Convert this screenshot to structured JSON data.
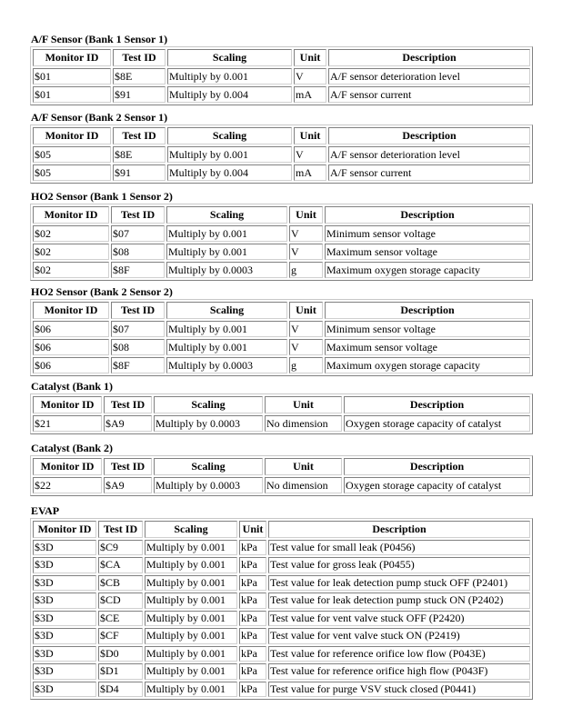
{
  "sections": [
    {
      "title": "A/F Sensor (Bank 1 Sensor 1)",
      "headers": [
        "Monitor ID",
        "Test ID",
        "Scaling",
        "Unit",
        "Description"
      ],
      "rows": [
        [
          "$01",
          "$8E",
          "Multiply by 0.001",
          "V",
          "A/F sensor deterioration level"
        ],
        [
          "$01",
          "$91",
          "Multiply by 0.004",
          "mA",
          "A/F sensor current"
        ]
      ]
    },
    {
      "title": "A/F Sensor (Bank 2 Sensor 1)",
      "headers": [
        "Monitor ID",
        "Test ID",
        "Scaling",
        "Unit",
        "Description"
      ],
      "rows": [
        [
          "$05",
          "$8E",
          "Multiply by 0.001",
          "V",
          "A/F sensor deterioration level"
        ],
        [
          "$05",
          "$91",
          "Multiply by 0.004",
          "mA",
          "A/F sensor current"
        ]
      ]
    },
    {
      "title": "HO2 Sensor (Bank 1 Sensor 2)",
      "headers": [
        "Monitor ID",
        "Test ID",
        "Scaling",
        "Unit",
        "Description"
      ],
      "rows": [
        [
          "$02",
          "$07",
          "Multiply by 0.001",
          "V",
          "Minimum sensor voltage"
        ],
        [
          "$02",
          "$08",
          "Multiply by 0.001",
          "V",
          "Maximum sensor voltage"
        ],
        [
          "$02",
          "$8F",
          "Multiply by 0.0003",
          "g",
          "Maximum oxygen storage capacity"
        ]
      ]
    },
    {
      "title": "HO2 Sensor (Bank 2 Sensor 2)",
      "headers": [
        "Monitor ID",
        "Test ID",
        "Scaling",
        "Unit",
        "Description"
      ],
      "rows": [
        [
          "$06",
          "$07",
          "Multiply by 0.001",
          "V",
          "Minimum sensor voltage"
        ],
        [
          "$06",
          "$08",
          "Multiply by 0.001",
          "V",
          "Maximum sensor voltage"
        ],
        [
          "$06",
          "$8F",
          "Multiply by 0.0003",
          "g",
          "Maximum oxygen storage capacity"
        ]
      ]
    },
    {
      "title": "Catalyst (Bank 1)",
      "headers": [
        "Monitor ID",
        "Test ID",
        "Scaling",
        "Unit",
        "Description"
      ],
      "rows": [
        [
          "$21",
          "$A9",
          "Multiply by 0.0003",
          "No dimension",
          "Oxygen storage capacity of catalyst"
        ]
      ]
    },
    {
      "title": "Catalyst (Bank 2)",
      "headers": [
        "Monitor ID",
        "Test ID",
        "Scaling",
        "Unit",
        "Description"
      ],
      "rows": [
        [
          "$22",
          "$A9",
          "Multiply by 0.0003",
          "No dimension",
          "Oxygen storage capacity of catalyst"
        ]
      ]
    },
    {
      "title": "EVAP",
      "headers": [
        "Monitor ID",
        "Test ID",
        "Scaling",
        "Unit",
        "Description"
      ],
      "rows": [
        [
          "$3D",
          "$C9",
          "Multiply by 0.001",
          "kPa",
          "Test value for small leak (P0456)"
        ],
        [
          "$3D",
          "$CA",
          "Multiply by 0.001",
          "kPa",
          "Test value for gross leak (P0455)"
        ],
        [
          "$3D",
          "$CB",
          "Multiply by 0.001",
          "kPa",
          "Test value for leak detection pump stuck OFF (P2401)"
        ],
        [
          "$3D",
          "$CD",
          "Multiply by 0.001",
          "kPa",
          "Test value for leak detection pump stuck ON (P2402)"
        ],
        [
          "$3D",
          "$CE",
          "Multiply by 0.001",
          "kPa",
          "Test value for vent valve stuck OFF (P2420)"
        ],
        [
          "$3D",
          "$CF",
          "Multiply by 0.001",
          "kPa",
          "Test value for vent valve stuck ON (P2419)"
        ],
        [
          "$3D",
          "$D0",
          "Multiply by 0.001",
          "kPa",
          "Test value for reference orifice low flow (P043E)"
        ],
        [
          "$3D",
          "$D1",
          "Multiply by 0.001",
          "kPa",
          "Test value for reference orifice high flow (P043F)"
        ],
        [
          "$3D",
          "$D4",
          "Multiply by 0.001",
          "kPa",
          "Test value for purge VSV stuck closed (P0441)"
        ]
      ]
    }
  ]
}
